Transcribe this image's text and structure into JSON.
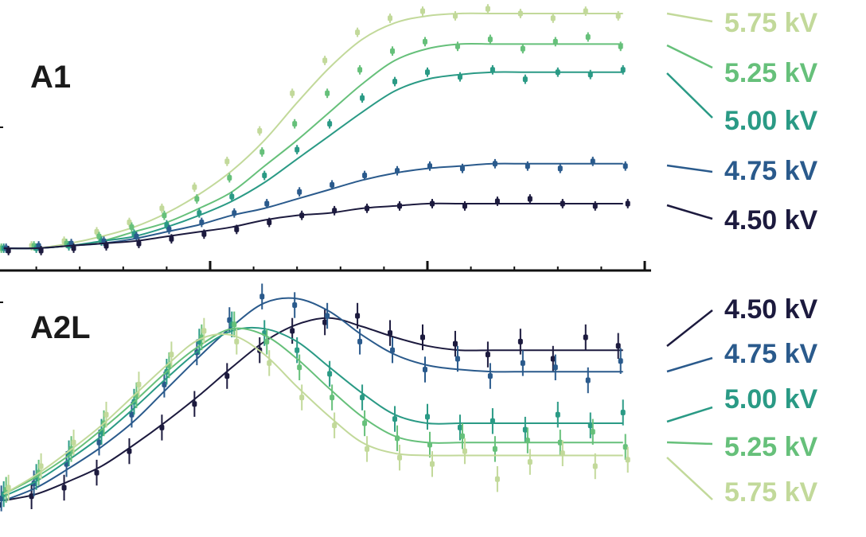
{
  "chart_data": [
    {
      "type": "line",
      "panel_label": "A1",
      "title": "",
      "xlabel": "",
      "ylabel": "",
      "xlim": [
        0,
        3
      ],
      "ylim": [
        0,
        1.05
      ],
      "grid": false,
      "legend_placement": "right",
      "x": [
        0.05,
        0.2,
        0.35,
        0.5,
        0.65,
        0.8,
        0.95,
        1.1,
        1.25,
        1.4,
        1.55,
        1.7,
        1.85,
        2.0,
        2.15,
        2.3,
        2.45,
        2.6,
        2.75,
        2.9
      ],
      "error_bar": 0.02,
      "series": [
        {
          "name": "5.75 kV",
          "color": "#c2d99a",
          "points": [
            0,
            0.01,
            0.03,
            0.07,
            0.11,
            0.17,
            0.26,
            0.37,
            0.5,
            0.66,
            0.8,
            0.92,
            0.98,
            1.01,
            0.99,
            1.02,
            1.0,
            0.98,
            1.01,
            0.99
          ],
          "fit": [
            0,
            0,
            0.02,
            0.05,
            0.09,
            0.15,
            0.23,
            0.33,
            0.46,
            0.62,
            0.77,
            0.89,
            0.96,
            0.99,
            1,
            1,
            1,
            1,
            1,
            1
          ]
        },
        {
          "name": "5.25 kV",
          "color": "#66c07a",
          "points": [
            0,
            0.01,
            0.02,
            0.05,
            0.09,
            0.14,
            0.21,
            0.3,
            0.41,
            0.53,
            0.66,
            0.76,
            0.84,
            0.88,
            0.86,
            0.89,
            0.85,
            0.88,
            0.9,
            0.86
          ],
          "fit": [
            0,
            0,
            0.01,
            0.03,
            0.07,
            0.11,
            0.17,
            0.24,
            0.35,
            0.46,
            0.58,
            0.7,
            0.8,
            0.85,
            0.87,
            0.87,
            0.87,
            0.87,
            0.87,
            0.87
          ]
        },
        {
          "name": "5.00 kV",
          "color": "#2a9a85",
          "points": [
            0,
            0,
            0.01,
            0.03,
            0.06,
            0.1,
            0.15,
            0.22,
            0.31,
            0.42,
            0.53,
            0.64,
            0.71,
            0.75,
            0.73,
            0.76,
            0.72,
            0.75,
            0.74,
            0.76
          ],
          "fit": [
            0,
            0,
            0.01,
            0.03,
            0.05,
            0.09,
            0.14,
            0.2,
            0.28,
            0.38,
            0.48,
            0.58,
            0.67,
            0.72,
            0.74,
            0.75,
            0.75,
            0.75,
            0.75,
            0.75
          ]
        },
        {
          "name": "4.75 kV",
          "color": "#2a5a8c",
          "points": [
            0,
            0.01,
            0.02,
            0.03,
            0.05,
            0.08,
            0.11,
            0.15,
            0.19,
            0.24,
            0.27,
            0.31,
            0.33,
            0.35,
            0.34,
            0.36,
            0.35,
            0.34,
            0.37,
            0.35
          ],
          "fit": [
            0,
            0,
            0.01,
            0.02,
            0.04,
            0.07,
            0.1,
            0.14,
            0.17,
            0.21,
            0.25,
            0.29,
            0.32,
            0.34,
            0.35,
            0.36,
            0.36,
            0.36,
            0.36,
            0.36
          ]
        },
        {
          "name": "4.50 kV",
          "color": "#1c1a3e",
          "points": [
            -0.01,
            -0.01,
            0,
            0.01,
            0.02,
            0.04,
            0.06,
            0.08,
            0.11,
            0.14,
            0.16,
            0.17,
            0.18,
            0.19,
            0.18,
            0.2,
            0.21,
            0.19,
            0.18,
            0.19
          ],
          "fit": [
            0,
            0,
            0.01,
            0.02,
            0.03,
            0.05,
            0.07,
            0.09,
            0.12,
            0.14,
            0.15,
            0.17,
            0.18,
            0.19,
            0.19,
            0.19,
            0.19,
            0.19,
            0.19,
            0.19
          ]
        }
      ]
    },
    {
      "type": "line",
      "panel_label": "A2L",
      "title": "",
      "xlabel": "",
      "ylabel": "",
      "xlim": [
        0,
        3
      ],
      "ylim": [
        0,
        1.05
      ],
      "grid": false,
      "legend_placement": "right",
      "x": [
        0.05,
        0.2,
        0.35,
        0.5,
        0.65,
        0.8,
        0.95,
        1.1,
        1.25,
        1.4,
        1.55,
        1.7,
        1.85,
        2.0,
        2.15,
        2.3,
        2.45,
        2.6,
        2.75,
        2.9
      ],
      "error_bar": 0.06,
      "series": [
        {
          "name": "4.50 kV",
          "color": "#1c1a3e",
          "points": [
            0.02,
            0.06,
            0.1,
            0.17,
            0.27,
            0.38,
            0.49,
            0.62,
            0.74,
            0.83,
            0.87,
            0.9,
            0.82,
            0.8,
            0.77,
            0.72,
            0.78,
            0.7,
            0.8,
            0.76
          ],
          "fit": [
            0.04,
            0.07,
            0.13,
            0.2,
            0.3,
            0.41,
            0.53,
            0.66,
            0.78,
            0.86,
            0.89,
            0.85,
            0.8,
            0.76,
            0.74,
            0.74,
            0.74,
            0.74,
            0.74,
            0.74
          ]
        },
        {
          "name": "4.75 kV",
          "color": "#2a5a8c",
          "points": [
            0.05,
            0.12,
            0.21,
            0.31,
            0.44,
            0.58,
            0.73,
            0.88,
            0.99,
            0.95,
            0.9,
            0.78,
            0.74,
            0.65,
            0.7,
            0.62,
            0.68,
            0.66,
            0.6,
            0.69
          ],
          "fit": [
            0.04,
            0.1,
            0.19,
            0.29,
            0.41,
            0.56,
            0.71,
            0.85,
            0.96,
            0.98,
            0.92,
            0.81,
            0.72,
            0.67,
            0.65,
            0.64,
            0.64,
            0.64,
            0.64,
            0.64
          ]
        },
        {
          "name": "5.00 kV",
          "color": "#2a9a85",
          "points": [
            0.07,
            0.15,
            0.26,
            0.36,
            0.5,
            0.64,
            0.78,
            0.86,
            0.82,
            0.74,
            0.63,
            0.52,
            0.42,
            0.43,
            0.38,
            0.41,
            0.37,
            0.44,
            0.39,
            0.45
          ],
          "fit": [
            0.06,
            0.13,
            0.23,
            0.34,
            0.47,
            0.61,
            0.74,
            0.83,
            0.84,
            0.78,
            0.66,
            0.54,
            0.44,
            0.4,
            0.4,
            0.4,
            0.4,
            0.4,
            0.4,
            0.4
          ]
        },
        {
          "name": "5.25 kV",
          "color": "#66c07a",
          "points": [
            0.09,
            0.17,
            0.28,
            0.4,
            0.53,
            0.67,
            0.8,
            0.86,
            0.78,
            0.66,
            0.52,
            0.4,
            0.33,
            0.3,
            0.34,
            0.28,
            0.32,
            0.31,
            0.36,
            0.29
          ],
          "fit": [
            0.07,
            0.15,
            0.25,
            0.37,
            0.5,
            0.64,
            0.76,
            0.84,
            0.81,
            0.7,
            0.56,
            0.43,
            0.34,
            0.31,
            0.31,
            0.31,
            0.31,
            0.31,
            0.31,
            0.31
          ]
        },
        {
          "name": "5.75 kV",
          "color": "#c2d99a",
          "points": [
            0.1,
            0.2,
            0.31,
            0.44,
            0.58,
            0.72,
            0.83,
            0.78,
            0.68,
            0.52,
            0.39,
            0.28,
            0.24,
            0.21,
            0.27,
            0.14,
            0.22,
            0.26,
            0.2,
            0.23
          ],
          "fit": [
            0.07,
            0.16,
            0.27,
            0.39,
            0.53,
            0.67,
            0.79,
            0.81,
            0.72,
            0.57,
            0.43,
            0.31,
            0.26,
            0.25,
            0.25,
            0.25,
            0.25,
            0.25,
            0.25,
            0.25
          ]
        }
      ]
    }
  ]
}
